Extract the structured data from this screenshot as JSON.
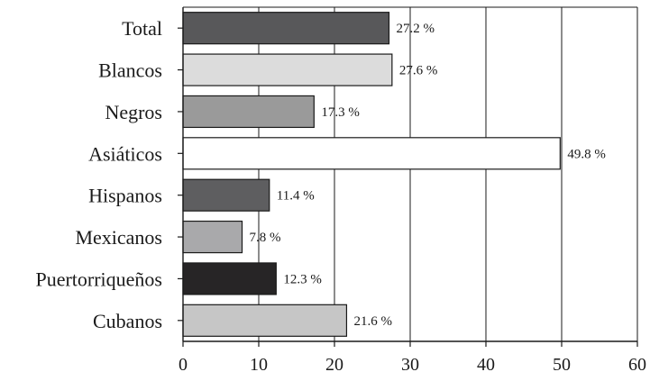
{
  "chart_data": {
    "type": "bar",
    "orientation": "horizontal",
    "categories": [
      "Total",
      "Blancos",
      "Negros",
      "Asiáticos",
      "Hispanos",
      "Mexicanos",
      "Puertorriqueños",
      "Cubanos"
    ],
    "values": [
      27.2,
      27.6,
      17.3,
      49.8,
      11.4,
      7.8,
      12.3,
      21.6
    ],
    "data_labels": [
      "27.2 %",
      "27.6 %",
      "17.3 %",
      "49.8 %",
      "11.4 %",
      "7.8 %",
      "12.3 %",
      "21.6 %"
    ],
    "bar_colors": [
      "#58585a",
      "#dcdcdc",
      "#9a9a9a",
      "#ffffff",
      "#5e5e60",
      "#a9a9ab",
      "#272526",
      "#c6c6c6"
    ],
    "xlim": [
      0,
      60
    ],
    "xticks": [
      0,
      10,
      20,
      30,
      40,
      50,
      60
    ],
    "grid": "vertical",
    "title": "",
    "xlabel": "",
    "ylabel": ""
  }
}
